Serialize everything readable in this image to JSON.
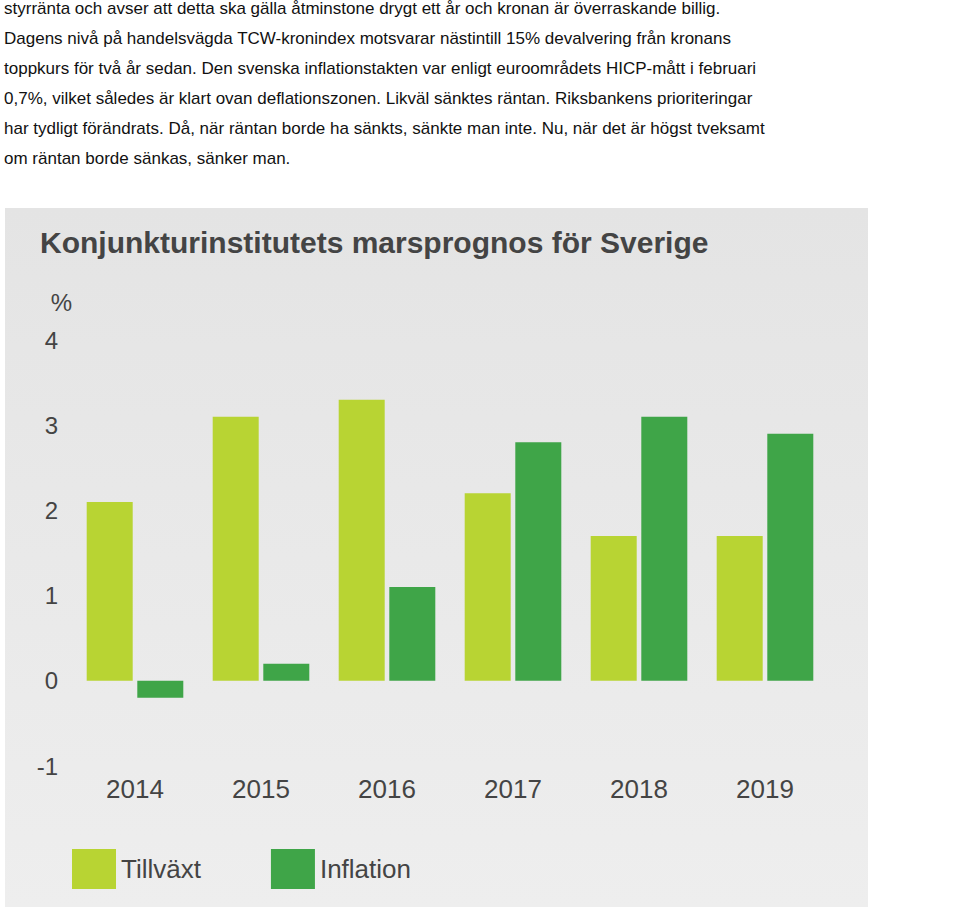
{
  "text": {
    "lines": [
      "styrränta och avser att detta ska gälla åtminstone drygt ett år och kronan är överraskande billig.",
      "Dagens nivå på handelsvägda TCW-kronindex motsvarar nästintill 15% devalvering från kronans",
      "toppkurs för två år sedan. Den svenska inflationstakten var enligt euroområdets HICP-mått i februari",
      "0,7%, vilket således är klart ovan deflationszonen. Likväl sänktes räntan. Riksbankens prioriteringar",
      "har tydligt förändrats. Då, när räntan borde ha sänkts, sänkte man inte. Nu, när det är högst tveksamt",
      "om räntan borde sänkas, sänker man."
    ]
  },
  "chart_data": {
    "type": "bar",
    "title": "Konjunkturinstitutets marsprognos för Sverige",
    "y_label": "%",
    "categories": [
      "2014",
      "2015",
      "2016",
      "2017",
      "2018",
      "2019"
    ],
    "series": [
      {
        "name": "Tillväxt",
        "color": "#b8d433",
        "values": [
          2.1,
          3.1,
          3.3,
          2.2,
          1.7,
          1.7
        ]
      },
      {
        "name": "Inflation",
        "color": "#3fa548",
        "values": [
          -0.2,
          0.2,
          1.1,
          2.8,
          3.1,
          2.9
        ]
      }
    ],
    "ylim": [
      -1,
      4
    ],
    "yticks": [
      -1,
      0,
      1,
      2,
      3,
      4
    ],
    "grid": false,
    "legend": "bottom"
  }
}
